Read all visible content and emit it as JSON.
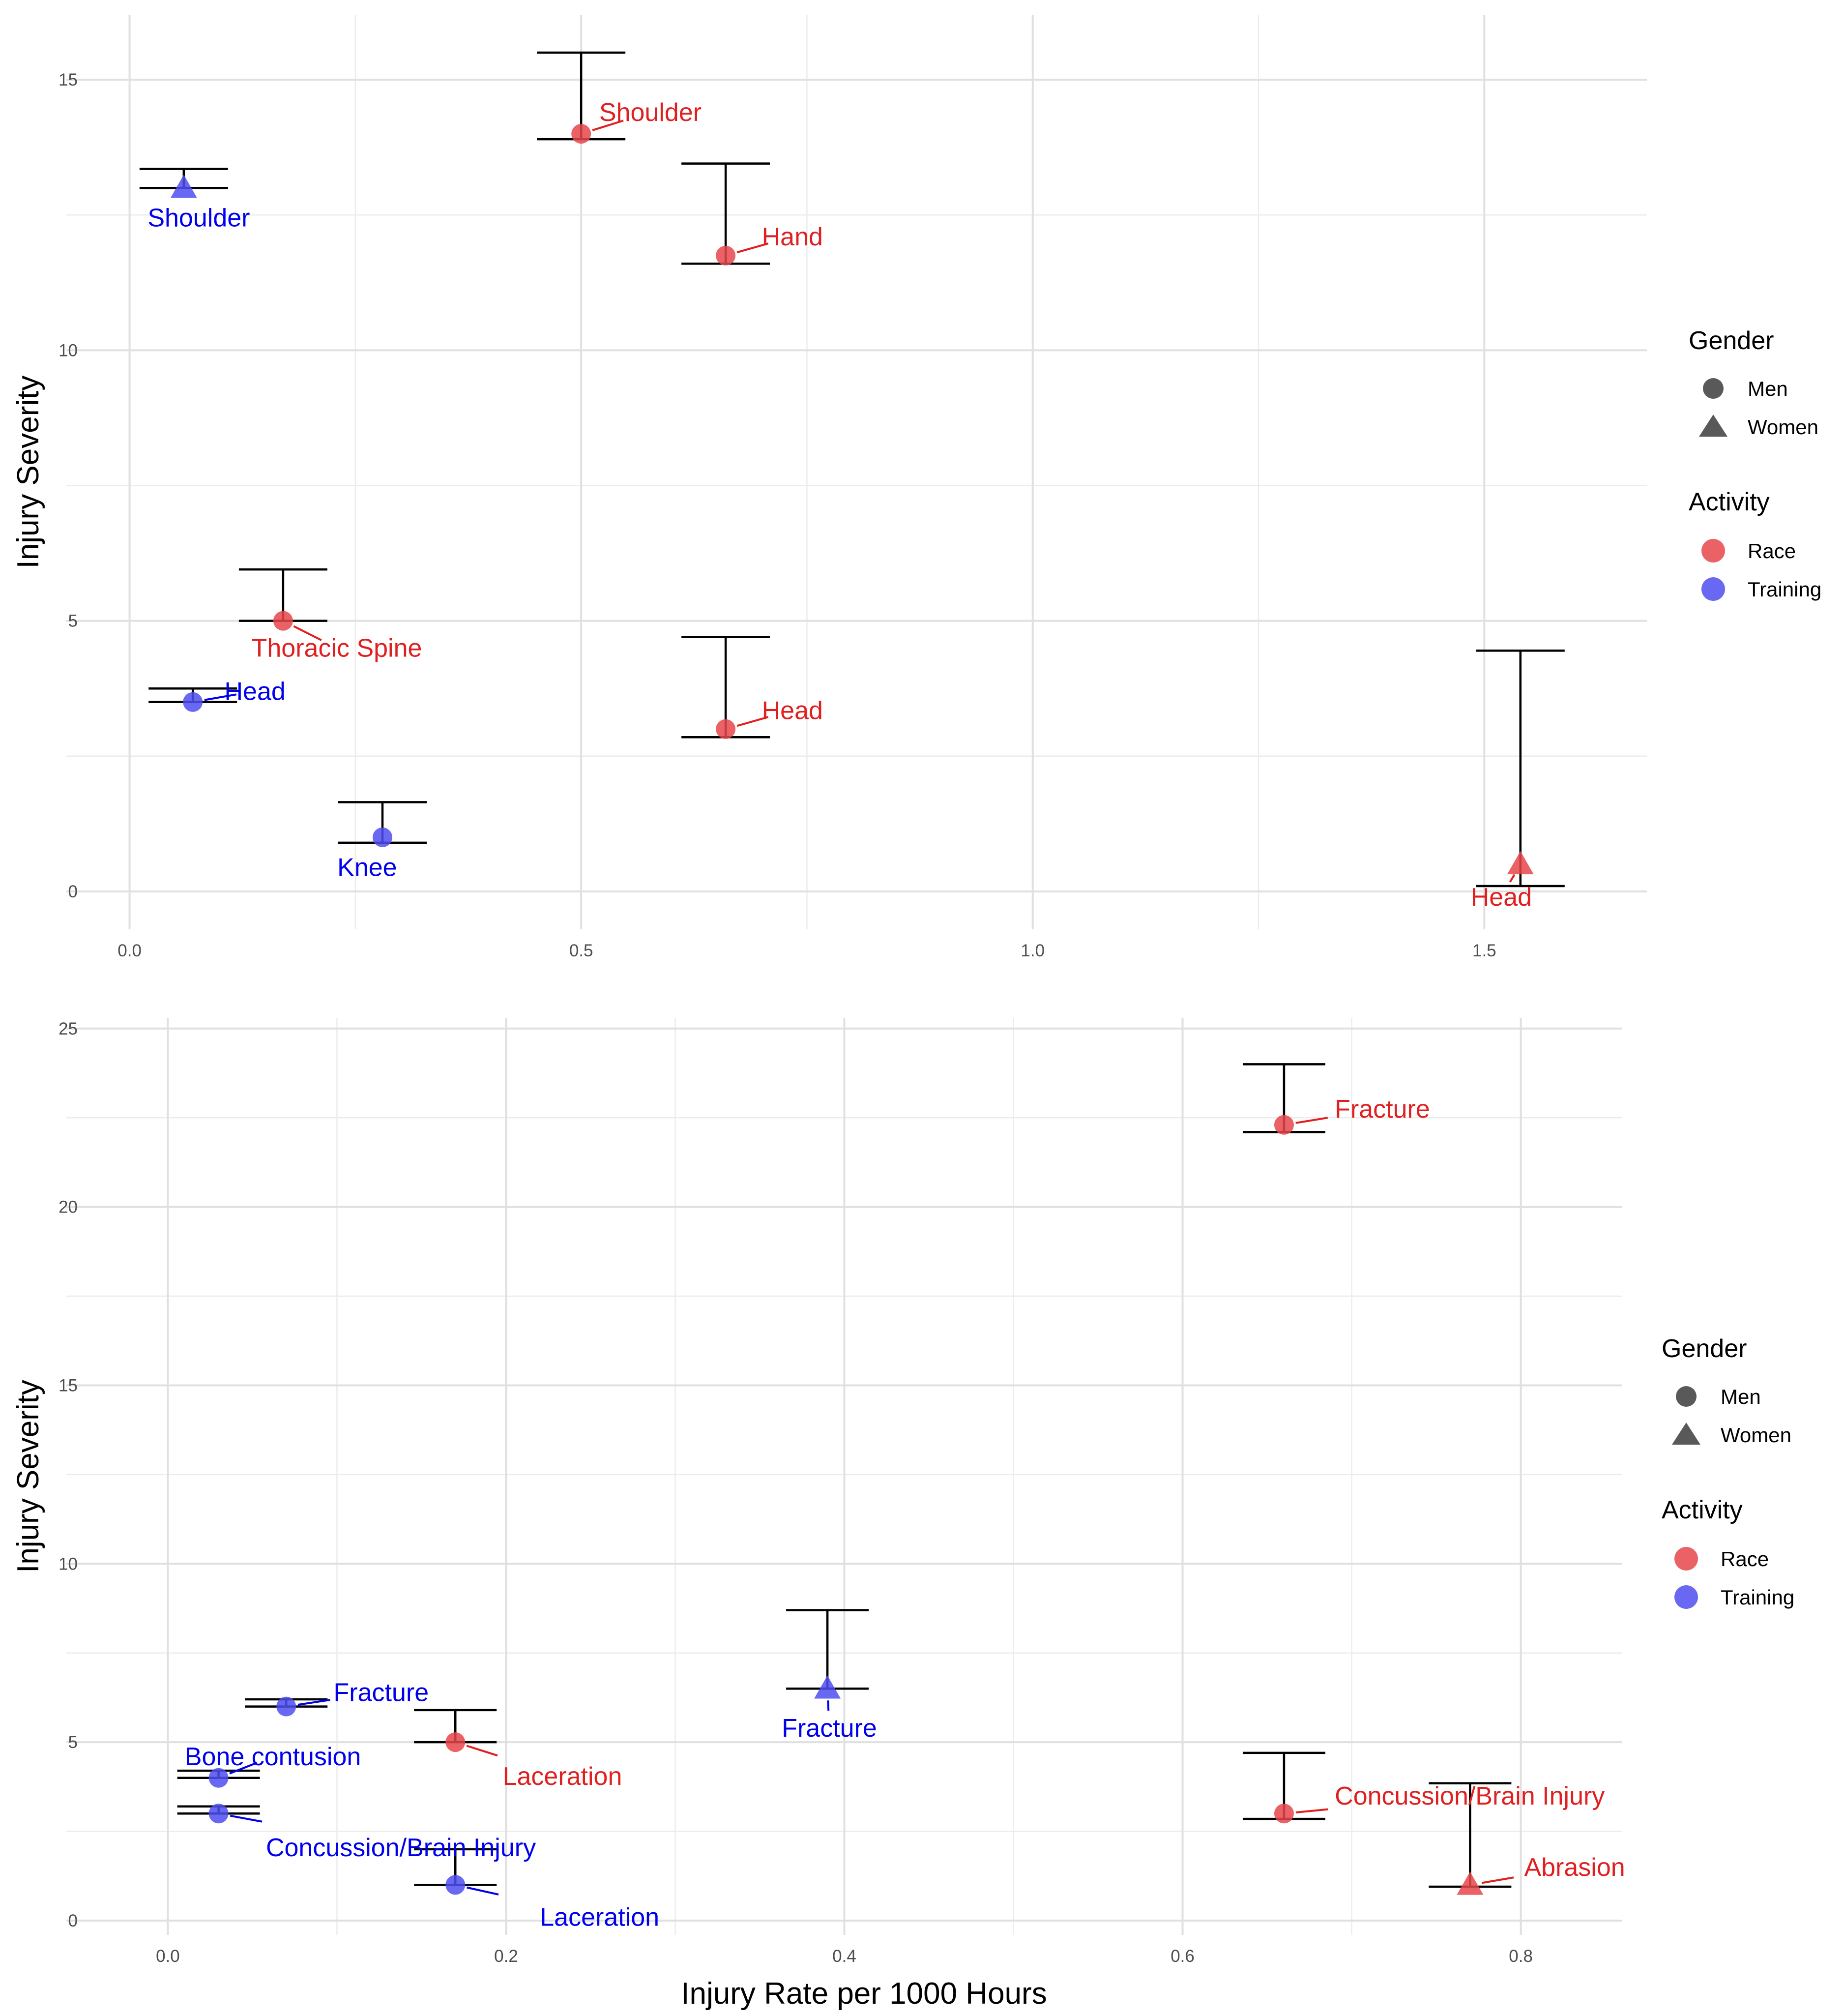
{
  "colors": {
    "Race": "#e8464b",
    "Training": "#4d4df0",
    "Race_label": "#e02020",
    "Training_label": "#0000ee",
    "legend_shape": "#595959"
  },
  "chart_data": [
    {
      "type": "scatter",
      "title": "",
      "xlabel": "",
      "ylabel": "Injury Severity",
      "xlim": [
        -0.07,
        1.68
      ],
      "ylim": [
        -0.7,
        16.2
      ],
      "x_ticks": [
        0.0,
        0.5,
        1.0,
        1.5
      ],
      "x_tick_labels": [
        "0.0",
        "0.5",
        "1.0",
        "1.5"
      ],
      "y_ticks": [
        0,
        5,
        10,
        15
      ],
      "y_tick_labels": [
        "0",
        "5",
        "10",
        "15"
      ],
      "grid": true,
      "legend_placement": "right",
      "legend": {
        "shape_title": "Gender",
        "shape_entries": [
          {
            "label": "Men",
            "shape": "circle"
          },
          {
            "label": "Women",
            "shape": "triangle"
          }
        ],
        "color_title": "Activity",
        "color_entries": [
          {
            "label": "Race"
          },
          {
            "label": "Training"
          }
        ]
      },
      "points": [
        {
          "label": "Shoulder",
          "activity": "Training",
          "gender": "Women",
          "x": 0.06,
          "y": 13.0,
          "ylo": 13.0,
          "yhi": 13.35,
          "lx": 0.02,
          "ly": 12.45
        },
        {
          "label": "Shoulder",
          "activity": "Race",
          "gender": "Men",
          "x": 0.5,
          "y": 14.0,
          "ylo": 13.9,
          "yhi": 15.5,
          "lx": 0.52,
          "ly": 14.4
        },
        {
          "label": "Hand",
          "activity": "Race",
          "gender": "Men",
          "x": 0.66,
          "y": 11.75,
          "ylo": 11.6,
          "yhi": 13.45,
          "lx": 0.7,
          "ly": 12.1
        },
        {
          "label": "Thoracic Spine",
          "activity": "Race",
          "gender": "Men",
          "x": 0.17,
          "y": 5.0,
          "ylo": 5.0,
          "yhi": 5.95,
          "lx": 0.135,
          "ly": 4.5
        },
        {
          "label": "Head",
          "activity": "Training",
          "gender": "Men",
          "x": 0.07,
          "y": 3.5,
          "ylo": 3.5,
          "yhi": 3.75,
          "lx": 0.105,
          "ly": 3.7
        },
        {
          "label": "Head",
          "activity": "Race",
          "gender": "Men",
          "x": 0.66,
          "y": 3.0,
          "ylo": 2.85,
          "yhi": 4.7,
          "lx": 0.7,
          "ly": 3.35
        },
        {
          "label": "Knee",
          "activity": "Training",
          "gender": "Men",
          "x": 0.28,
          "y": 1.0,
          "ylo": 0.9,
          "yhi": 1.65,
          "lx": 0.23,
          "ly": 0.45
        },
        {
          "label": "Head",
          "activity": "Race",
          "gender": "Women",
          "x": 1.54,
          "y": 0.5,
          "ylo": 0.1,
          "yhi": 4.45,
          "lx": 1.485,
          "ly": -0.1
        }
      ]
    },
    {
      "type": "scatter",
      "title": "",
      "xlabel": "Injury Rate per 1000 Hours",
      "ylabel": "Injury Severity",
      "xlim": [
        -0.06,
        0.86
      ],
      "ylim": [
        -0.4,
        25.3
      ],
      "x_ticks": [
        0.0,
        0.2,
        0.4,
        0.6,
        0.8
      ],
      "x_tick_labels": [
        "0.0",
        "0.2",
        "0.4",
        "0.6",
        "0.8"
      ],
      "y_ticks": [
        0,
        5,
        10,
        15,
        20,
        25
      ],
      "y_tick_labels": [
        "0",
        "5",
        "10",
        "15",
        "20",
        "25"
      ],
      "grid": true,
      "legend_placement": "right",
      "legend": {
        "shape_title": "Gender",
        "shape_entries": [
          {
            "label": "Men",
            "shape": "circle"
          },
          {
            "label": "Women",
            "shape": "triangle"
          }
        ],
        "color_title": "Activity",
        "color_entries": [
          {
            "label": "Race"
          },
          {
            "label": "Training"
          }
        ]
      },
      "points": [
        {
          "label": "Fracture",
          "activity": "Race",
          "gender": "Men",
          "x": 0.66,
          "y": 22.3,
          "ylo": 22.1,
          "yhi": 24.0,
          "lx": 0.69,
          "ly": 22.75
        },
        {
          "label": "Fracture",
          "activity": "Training",
          "gender": "Men",
          "x": 0.07,
          "y": 6.0,
          "ylo": 6.0,
          "yhi": 6.2,
          "lx": 0.098,
          "ly": 6.4
        },
        {
          "label": "Laceration",
          "activity": "Race",
          "gender": "Men",
          "x": 0.17,
          "y": 5.0,
          "ylo": 5.0,
          "yhi": 5.9,
          "lx": 0.198,
          "ly": 4.05
        },
        {
          "label": "Fracture",
          "activity": "Training",
          "gender": "Women",
          "x": 0.39,
          "y": 6.5,
          "ylo": 6.5,
          "yhi": 8.7,
          "lx": 0.363,
          "ly": 5.4
        },
        {
          "label": "Bone contusion",
          "activity": "Training",
          "gender": "Men",
          "x": 0.03,
          "y": 4.0,
          "ylo": 4.0,
          "yhi": 4.2,
          "lx": 0.01,
          "ly": 4.6
        },
        {
          "label": "Concussion/Brain Injury",
          "activity": "Training",
          "gender": "Men",
          "x": 0.03,
          "y": 3.0,
          "ylo": 3.0,
          "yhi": 3.2,
          "lx": 0.058,
          "ly": 2.05
        },
        {
          "label": "Laceration",
          "activity": "Training",
          "gender": "Men",
          "x": 0.17,
          "y": 1.0,
          "ylo": 1.0,
          "yhi": 2.0,
          "lx": 0.22,
          "ly": 0.1
        },
        {
          "label": "Concussion/Brain Injury",
          "activity": "Race",
          "gender": "Men",
          "x": 0.66,
          "y": 3.0,
          "ylo": 2.85,
          "yhi": 4.7,
          "lx": 0.69,
          "ly": 3.5
        },
        {
          "label": "Abrasion",
          "activity": "Race",
          "gender": "Women",
          "x": 0.77,
          "y": 1.0,
          "ylo": 0.95,
          "yhi": 3.85,
          "lx": 0.802,
          "ly": 1.5
        }
      ]
    }
  ]
}
